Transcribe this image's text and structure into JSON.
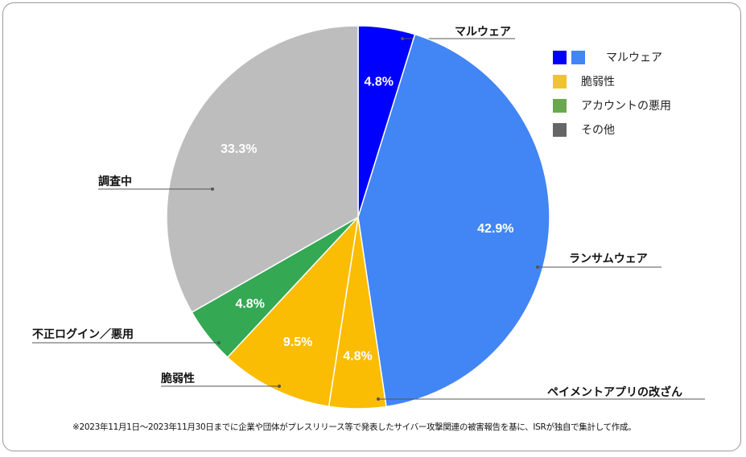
{
  "chart_data": {
    "type": "pie",
    "start": "top",
    "direction": "clockwise",
    "slices": [
      {
        "label": "マルウェア",
        "value": 4.8,
        "display": "4.8%",
        "color": "#0000ff"
      },
      {
        "label": "ランサムウェア",
        "value": 42.9,
        "display": "42.9%",
        "color": "#4285f4"
      },
      {
        "label": "ペイメントアプリの改ざん",
        "value": 4.8,
        "display": "4.8%",
        "color": "#fbbc04"
      },
      {
        "label": "脆弱性",
        "value": 9.5,
        "display": "9.5%",
        "color": "#fbbc04"
      },
      {
        "label": "不正ログイン／悪用",
        "value": 4.8,
        "display": "4.8%",
        "color": "#34a853"
      },
      {
        "label": "調査中",
        "value": 33.3,
        "display": "33.3%",
        "color": "#bdbdbd"
      }
    ],
    "legend": {
      "placement": "top-right",
      "entries": [
        {
          "label": "マルウェア",
          "colors": [
            "#0000ff",
            "#4285f4"
          ]
        },
        {
          "label": "脆弱性",
          "colors": [
            "#f1c232"
          ]
        },
        {
          "label": "アカウントの悪用",
          "colors": [
            "#6aa84f"
          ]
        },
        {
          "label": "その他",
          "colors": [
            "#666666"
          ]
        }
      ]
    }
  },
  "footnote": "※2023年11月1日～2023年11月30日までに企業や団体がプレスリリース等で発表したサイバー攻撃関連の被害報告を基に、ISRが独自で集計して作成。"
}
